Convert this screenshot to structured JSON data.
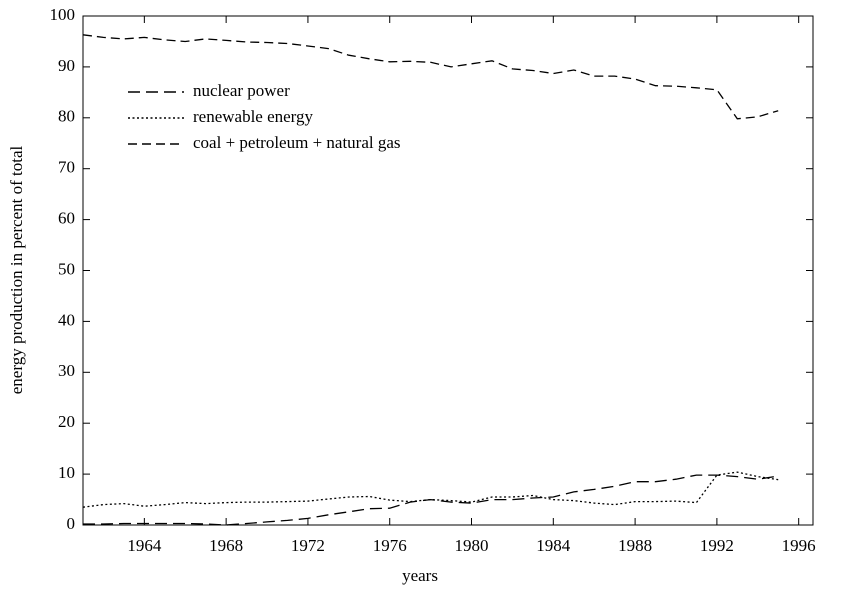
{
  "chart_data": {
    "type": "line",
    "xlabel": "years",
    "ylabel": "energy production in percent of total",
    "x": [
      1961,
      1962,
      1963,
      1964,
      1965,
      1966,
      1967,
      1968,
      1969,
      1970,
      1971,
      1972,
      1973,
      1974,
      1975,
      1976,
      1977,
      1978,
      1979,
      1980,
      1981,
      1982,
      1983,
      1984,
      1985,
      1986,
      1987,
      1988,
      1989,
      1990,
      1991,
      1992,
      1993,
      1994,
      1995
    ],
    "series": [
      {
        "name": "nuclear power",
        "color": "#000000",
        "dash": "long",
        "values": [
          0.2,
          0.2,
          0.3,
          0.3,
          0.3,
          0.3,
          0.2,
          0,
          0.3,
          0.6,
          0.9,
          1.3,
          2,
          2.6,
          3.2,
          3.3,
          4.5,
          5,
          4.5,
          4.3,
          5,
          5,
          5.3,
          5.5,
          6.5,
          7,
          7.6,
          8.5,
          8.5,
          9,
          9.8,
          9.8,
          9.5,
          9,
          9.6
        ]
      },
      {
        "name": "renewable energy",
        "color": "#000000",
        "dash": "dot",
        "values": [
          3.5,
          4,
          4.2,
          3.7,
          4,
          4.4,
          4.2,
          4.4,
          4.5,
          4.5,
          4.6,
          4.7,
          5.1,
          5.5,
          5.6,
          4.9,
          4.6,
          5,
          4.8,
          4.5,
          5.5,
          5.5,
          5.8,
          5,
          4.8,
          4.3,
          4,
          4.6,
          4.6,
          4.7,
          4.4,
          9.8,
          10.4,
          9.5,
          8.9
        ]
      },
      {
        "name": "coal + petroleum + natural gas",
        "color": "#000000",
        "dash": "medium",
        "values": [
          96.3,
          95.8,
          95.5,
          95.8,
          95.3,
          95,
          95.5,
          95.2,
          94.9,
          94.8,
          94.6,
          94.1,
          93.6,
          92.3,
          91.6,
          91,
          91.1,
          90.9,
          90,
          90.6,
          91.2,
          89.6,
          89.3,
          88.7,
          89.4,
          88.2,
          88.2,
          87.6,
          86.3,
          86.2,
          85.9,
          85.5,
          79.8,
          80.2,
          81.4
        ]
      }
    ],
    "xlim": [
      1961,
      1996.7
    ],
    "ylim": [
      0,
      100
    ],
    "xticks": [
      1964,
      1968,
      1972,
      1976,
      1980,
      1984,
      1988,
      1992,
      1996
    ],
    "yticks": [
      0,
      10,
      20,
      30,
      40,
      50,
      60,
      70,
      80,
      90,
      100
    ],
    "legend": "upper left"
  }
}
